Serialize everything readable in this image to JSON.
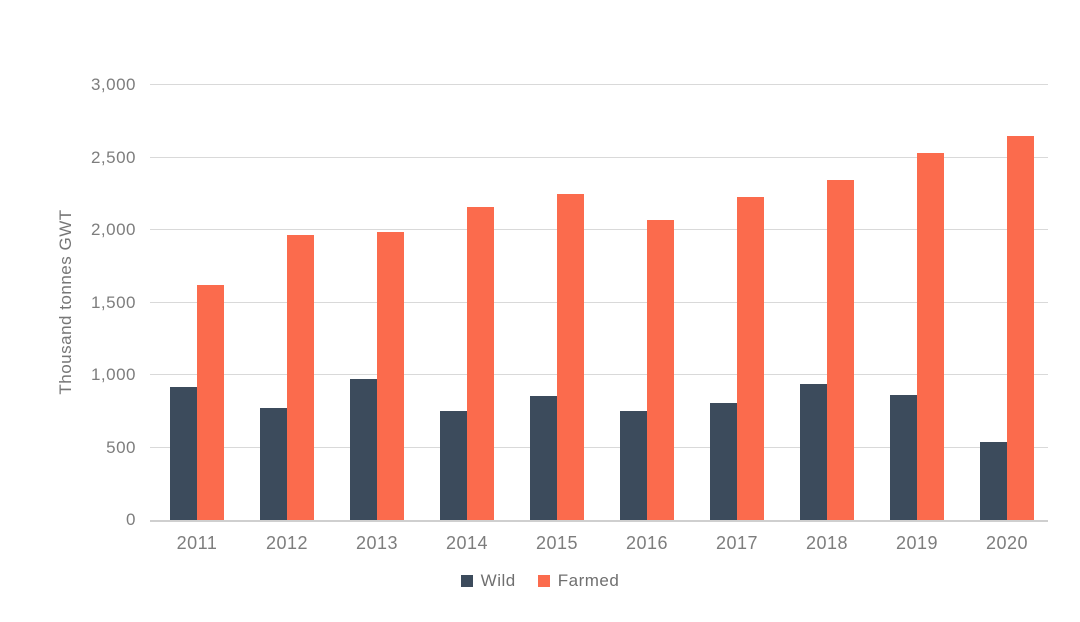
{
  "chart_data": {
    "type": "bar",
    "title": "",
    "ylabel": "Thousand tonnes GWT",
    "xlabel": "",
    "categories": [
      "2011",
      "2012",
      "2013",
      "2014",
      "2015",
      "2016",
      "2017",
      "2018",
      "2019",
      "2020"
    ],
    "series": [
      {
        "name": "Wild",
        "color": "#3c4b5c",
        "values": [
          920,
          770,
          970,
          750,
          855,
          750,
          810,
          940,
          865,
          540
        ]
      },
      {
        "name": "Farmed",
        "color": "#fb6b4d",
        "values": [
          1620,
          1965,
          1985,
          2160,
          2250,
          2070,
          2230,
          2345,
          2530,
          2650
        ]
      }
    ],
    "ylim": [
      0,
      3000
    ],
    "yticks": {
      "values": [
        0,
        500,
        1000,
        1500,
        2000,
        2500,
        3000
      ],
      "labels": [
        "0",
        "500",
        "1,000",
        "1,500",
        "2,000",
        "2,500",
        "3,000"
      ]
    },
    "grid": true,
    "legend_position": "bottom"
  },
  "colors": {
    "background": "#ffffff",
    "gridline": "#d9d9d9",
    "axis_line": "#cfcfcf",
    "text": "#7d7d7d"
  }
}
